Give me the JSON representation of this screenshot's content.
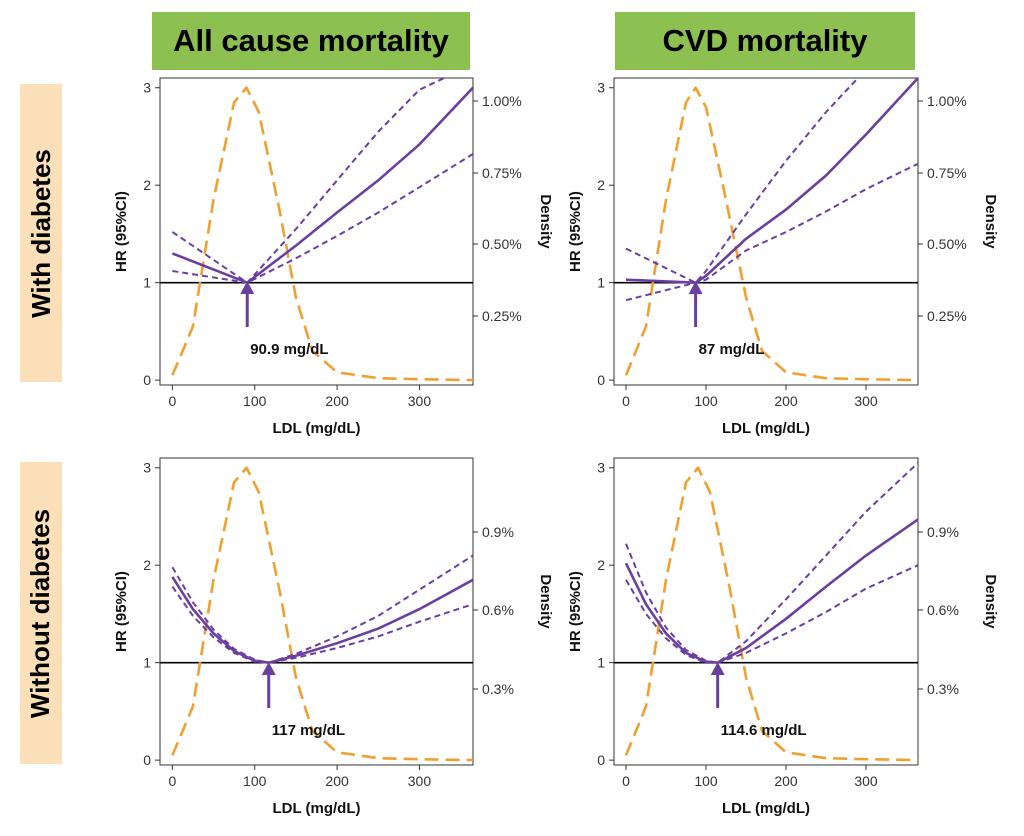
{
  "column_headers": [
    "All cause mortality",
    "CVD mortality"
  ],
  "row_headers": [
    "With diabetes",
    "Without diabetes"
  ],
  "colors": {
    "header_green": "#8cc152",
    "row_tan": "#fbdfb9",
    "hr_line": "#6a3fa0",
    "density_line": "#f0a030",
    "reference_line": "#000000"
  },
  "chart_data": [
    {
      "type": "line",
      "panel": "with-diabetes-all-cause",
      "xlabel": "LDL (mg/dL)",
      "ylabel": "HR (95%CI)",
      "y2label": "Density",
      "xlim": [
        -15,
        365
      ],
      "ylim": [
        -0.05,
        3.1
      ],
      "xticks": [
        "0",
        "100",
        "200",
        "300"
      ],
      "yticks": [
        "0",
        "1",
        "2",
        "3"
      ],
      "y2ticks": [
        "0.25%",
        "0.50%",
        "0.75%",
        "1.00%"
      ],
      "reference_hr": 1,
      "optimum_label": "90.9  mg/dL",
      "optimum_ldl": 90.9,
      "hr": {
        "x": [
          0,
          90.9,
          150,
          200,
          250,
          300,
          365
        ],
        "y": [
          1.3,
          1.0,
          1.38,
          1.72,
          2.05,
          2.42,
          3.0
        ]
      },
      "hr_upper": {
        "x": [
          0,
          90.9,
          150,
          200,
          250,
          300,
          330
        ],
        "y": [
          1.52,
          1.0,
          1.55,
          2.05,
          2.55,
          2.98,
          3.1
        ]
      },
      "hr_lower": {
        "x": [
          0,
          90.9,
          150,
          200,
          250,
          300,
          365
        ],
        "y": [
          1.12,
          1.0,
          1.25,
          1.48,
          1.72,
          1.98,
          2.32
        ]
      },
      "density": {
        "x": [
          0,
          25,
          50,
          75,
          90,
          105,
          130,
          150,
          170,
          200,
          250,
          300,
          365
        ],
        "y": [
          0.05,
          0.55,
          1.85,
          2.85,
          3.0,
          2.75,
          1.75,
          0.85,
          0.3,
          0.08,
          0.02,
          0.01,
          0.0
        ]
      }
    },
    {
      "type": "line",
      "panel": "with-diabetes-cvd",
      "xlabel": "LDL (mg/dL)",
      "ylabel": "HR (95%CI)",
      "y2label": "Density",
      "xlim": [
        -15,
        365
      ],
      "ylim": [
        -0.05,
        3.1
      ],
      "xticks": [
        "0",
        "100",
        "200",
        "300"
      ],
      "yticks": [
        "0",
        "1",
        "2",
        "3"
      ],
      "y2ticks": [
        "0.25%",
        "0.50%",
        "0.75%",
        "1.00%"
      ],
      "reference_hr": 1,
      "optimum_label": "87  mg/dL",
      "optimum_ldl": 87,
      "hr": {
        "x": [
          0,
          87,
          100,
          150,
          200,
          250,
          300,
          365
        ],
        "y": [
          1.03,
          1.0,
          1.07,
          1.45,
          1.75,
          2.1,
          2.52,
          3.1
        ]
      },
      "hr_upper": {
        "x": [
          0,
          87,
          100,
          150,
          200,
          250,
          290
        ],
        "y": [
          1.35,
          1.0,
          1.12,
          1.7,
          2.25,
          2.75,
          3.1
        ]
      },
      "hr_lower": {
        "x": [
          0,
          87,
          100,
          150,
          200,
          250,
          300,
          365
        ],
        "y": [
          0.82,
          1.0,
          1.03,
          1.33,
          1.52,
          1.73,
          1.96,
          2.22
        ]
      },
      "density": {
        "x": [
          0,
          25,
          50,
          75,
          87,
          100,
          125,
          150,
          170,
          200,
          250,
          300,
          365
        ],
        "y": [
          0.05,
          0.55,
          1.85,
          2.85,
          3.0,
          2.8,
          1.85,
          0.85,
          0.3,
          0.08,
          0.02,
          0.01,
          0.0
        ]
      }
    },
    {
      "type": "line",
      "panel": "without-diabetes-all-cause",
      "xlabel": "LDL (mg/dL)",
      "ylabel": "HR (95%CI)",
      "y2label": "Density",
      "xlim": [
        -15,
        365
      ],
      "ylim": [
        -0.05,
        3.1
      ],
      "xticks": [
        "0",
        "100",
        "200",
        "300"
      ],
      "yticks": [
        "0",
        "1",
        "2",
        "3"
      ],
      "y2ticks": [
        "0.3%",
        "0.6%",
        "0.9%"
      ],
      "reference_hr": 1,
      "optimum_label": "117  mg/dL",
      "optimum_ldl": 117,
      "hr": {
        "x": [
          0,
          25,
          50,
          75,
          100,
          117,
          150,
          200,
          250,
          300,
          365
        ],
        "y": [
          1.88,
          1.55,
          1.3,
          1.12,
          1.02,
          1.0,
          1.07,
          1.2,
          1.35,
          1.55,
          1.85
        ]
      },
      "hr_upper": {
        "x": [
          0,
          25,
          50,
          75,
          100,
          117,
          150,
          200,
          250,
          300,
          365
        ],
        "y": [
          1.98,
          1.62,
          1.34,
          1.14,
          1.03,
          1.0,
          1.09,
          1.27,
          1.48,
          1.75,
          2.1
        ]
      },
      "hr_lower": {
        "x": [
          0,
          25,
          50,
          75,
          100,
          117,
          150,
          200,
          250,
          300,
          365
        ],
        "y": [
          1.78,
          1.48,
          1.26,
          1.1,
          1.01,
          1.0,
          1.05,
          1.15,
          1.27,
          1.42,
          1.6
        ]
      },
      "density": {
        "x": [
          0,
          25,
          50,
          75,
          90,
          105,
          130,
          150,
          170,
          200,
          250,
          300,
          365
        ],
        "y": [
          0.05,
          0.55,
          1.85,
          2.85,
          3.0,
          2.75,
          1.75,
          0.85,
          0.3,
          0.08,
          0.02,
          0.01,
          0.0
        ]
      }
    },
    {
      "type": "line",
      "panel": "without-diabetes-cvd",
      "xlabel": "LDL (mg/dL)",
      "ylabel": "HR (95%CI)",
      "y2label": "Density",
      "xlim": [
        -15,
        365
      ],
      "ylim": [
        -0.05,
        3.1
      ],
      "xticks": [
        "0",
        "100",
        "200",
        "300"
      ],
      "yticks": [
        "0",
        "1",
        "2",
        "3"
      ],
      "y2ticks": [
        "0.3%",
        "0.6%",
        "0.9%"
      ],
      "reference_hr": 1,
      "optimum_label": "114.6  mg/dL",
      "optimum_ldl": 114.6,
      "hr": {
        "x": [
          0,
          25,
          50,
          75,
          100,
          114.6,
          150,
          200,
          250,
          300,
          365
        ],
        "y": [
          2.02,
          1.6,
          1.3,
          1.1,
          1.01,
          1.0,
          1.15,
          1.45,
          1.78,
          2.1,
          2.47
        ]
      },
      "hr_upper": {
        "x": [
          0,
          25,
          50,
          75,
          100,
          114.6,
          150,
          200,
          250,
          300,
          365
        ],
        "y": [
          2.22,
          1.72,
          1.36,
          1.13,
          1.02,
          1.0,
          1.22,
          1.65,
          2.1,
          2.55,
          3.05
        ]
      },
      "hr_lower": {
        "x": [
          0,
          25,
          50,
          75,
          100,
          114.6,
          150,
          200,
          250,
          300,
          365
        ],
        "y": [
          1.85,
          1.5,
          1.25,
          1.08,
          1.0,
          1.0,
          1.1,
          1.3,
          1.52,
          1.76,
          2.0
        ]
      },
      "density": {
        "x": [
          0,
          25,
          50,
          75,
          90,
          105,
          130,
          150,
          170,
          200,
          250,
          300,
          365
        ],
        "y": [
          0.05,
          0.55,
          1.85,
          2.85,
          3.0,
          2.75,
          1.75,
          0.85,
          0.3,
          0.08,
          0.02,
          0.01,
          0.0
        ]
      }
    }
  ]
}
